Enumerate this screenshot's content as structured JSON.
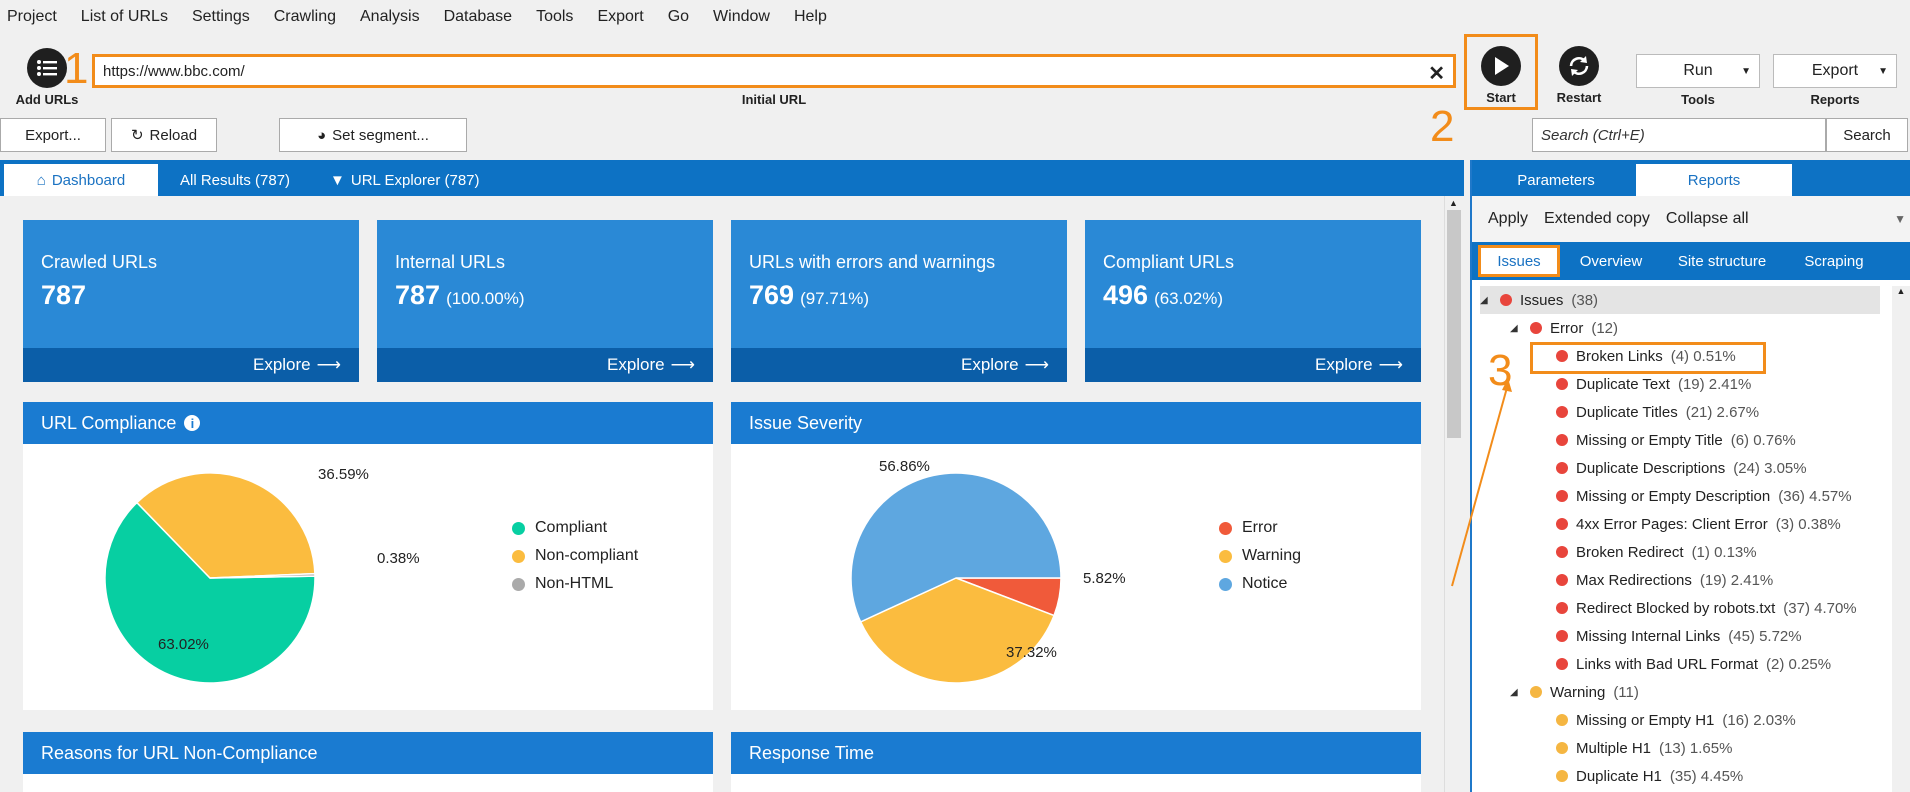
{
  "menu": [
    "Project",
    "List of URLs",
    "Settings",
    "Crawling",
    "Analysis",
    "Database",
    "Tools",
    "Export",
    "Go",
    "Window",
    "Help"
  ],
  "toolbar": {
    "add_urls": "Add URLs",
    "url_value": "https://www.bbc.com/",
    "url_caption": "Initial URL",
    "start": "Start",
    "restart": "Restart",
    "run_label": "Run",
    "tools_caption": "Tools",
    "export_label": "Export",
    "reports_caption": "Reports",
    "annot1": "1",
    "annot2": "2",
    "annot3": "3"
  },
  "secondary": {
    "export": "Export...",
    "reload": "Reload",
    "segment": "Set segment...",
    "search_placeholder": "Search (Ctrl+E)",
    "search_btn": "Search"
  },
  "tabs": {
    "dashboard": "Dashboard",
    "all_results": "All Results (787)",
    "url_explorer": "URL Explorer (787)"
  },
  "cards": [
    {
      "title": "Crawled URLs",
      "value": "787",
      "pct": "",
      "explore": "Explore"
    },
    {
      "title": "Internal URLs",
      "value": "787",
      "pct": "(100.00%)",
      "explore": "Explore"
    },
    {
      "title": "URLs with errors and warnings",
      "value": "769",
      "pct": "(97.71%)",
      "explore": "Explore"
    },
    {
      "title": "Compliant URLs",
      "value": "496",
      "pct": "(63.02%)",
      "explore": "Explore"
    }
  ],
  "compliance": {
    "title": "URL Compliance",
    "legend": [
      "Compliant",
      "Non-compliant",
      "Non-HTML"
    ],
    "labels": [
      "36.59%",
      "0.38%",
      "63.02%"
    ]
  },
  "severity": {
    "title": "Issue Severity",
    "legend": [
      "Error",
      "Warning",
      "Notice"
    ],
    "labels": [
      "56.86%",
      "5.82%",
      "37.32%"
    ]
  },
  "panels_bottom": {
    "reasons": "Reasons for URL Non-Compliance",
    "response": "Response Time"
  },
  "chart_data": [
    {
      "type": "pie",
      "title": "URL Compliance",
      "categories": [
        "Compliant",
        "Non-compliant",
        "Non-HTML"
      ],
      "values": [
        63.02,
        36.59,
        0.38
      ],
      "colors": [
        "#07cfa2",
        "#fbbc3f",
        "#aaaaaa"
      ]
    },
    {
      "type": "pie",
      "title": "Issue Severity",
      "categories": [
        "Error",
        "Warning",
        "Notice"
      ],
      "values": [
        5.82,
        37.32,
        56.86
      ],
      "colors": [
        "#f05a3a",
        "#fbbc3f",
        "#5ea7e0"
      ]
    }
  ],
  "right": {
    "tab_parameters": "Parameters",
    "tab_reports": "Reports",
    "apply": "Apply",
    "extended_copy": "Extended copy",
    "collapse_all": "Collapse all",
    "sub_issues": "Issues",
    "sub_overview": "Overview",
    "sub_site": "Site structure",
    "sub_scraping": "Scraping",
    "tree": [
      {
        "label": "Issues",
        "count": "(38)",
        "level": 0,
        "color": "#e8453c",
        "caret": true
      },
      {
        "label": "Error",
        "count": "(12)",
        "level": 1,
        "color": "#e8453c",
        "caret": true
      },
      {
        "label": "Broken Links",
        "count": "(4) 0.51%",
        "level": 2,
        "color": "#e8453c"
      },
      {
        "label": "Duplicate Text",
        "count": "(19) 2.41%",
        "level": 2,
        "color": "#e8453c"
      },
      {
        "label": "Duplicate Titles",
        "count": "(21) 2.67%",
        "level": 2,
        "color": "#e8453c"
      },
      {
        "label": "Missing or Empty Title",
        "count": "(6) 0.76%",
        "level": 2,
        "color": "#e8453c"
      },
      {
        "label": "Duplicate Descriptions",
        "count": "(24) 3.05%",
        "level": 2,
        "color": "#e8453c"
      },
      {
        "label": "Missing or Empty Description",
        "count": "(36) 4.57%",
        "level": 2,
        "color": "#e8453c"
      },
      {
        "label": "4xx Error Pages: Client Error",
        "count": "(3) 0.38%",
        "level": 2,
        "color": "#e8453c"
      },
      {
        "label": "Broken Redirect",
        "count": "(1) 0.13%",
        "level": 2,
        "color": "#e8453c"
      },
      {
        "label": "Max Redirections",
        "count": "(19) 2.41%",
        "level": 2,
        "color": "#e8453c"
      },
      {
        "label": "Redirect Blocked by robots.txt",
        "count": "(37) 4.70%",
        "level": 2,
        "color": "#e8453c"
      },
      {
        "label": "Missing Internal Links",
        "count": "(45) 5.72%",
        "level": 2,
        "color": "#e8453c"
      },
      {
        "label": "Links with Bad URL Format",
        "count": "(2) 0.25%",
        "level": 2,
        "color": "#e8453c"
      },
      {
        "label": "Warning",
        "count": "(11)",
        "level": 1,
        "color": "#f5b642",
        "caret": true
      },
      {
        "label": "Missing or Empty H1",
        "count": "(16) 2.03%",
        "level": 2,
        "color": "#f5b642"
      },
      {
        "label": "Multiple H1",
        "count": "(13) 1.65%",
        "level": 2,
        "color": "#f5b642"
      },
      {
        "label": "Duplicate H1",
        "count": "(35) 4.45%",
        "level": 2,
        "color": "#f5b642"
      }
    ]
  }
}
